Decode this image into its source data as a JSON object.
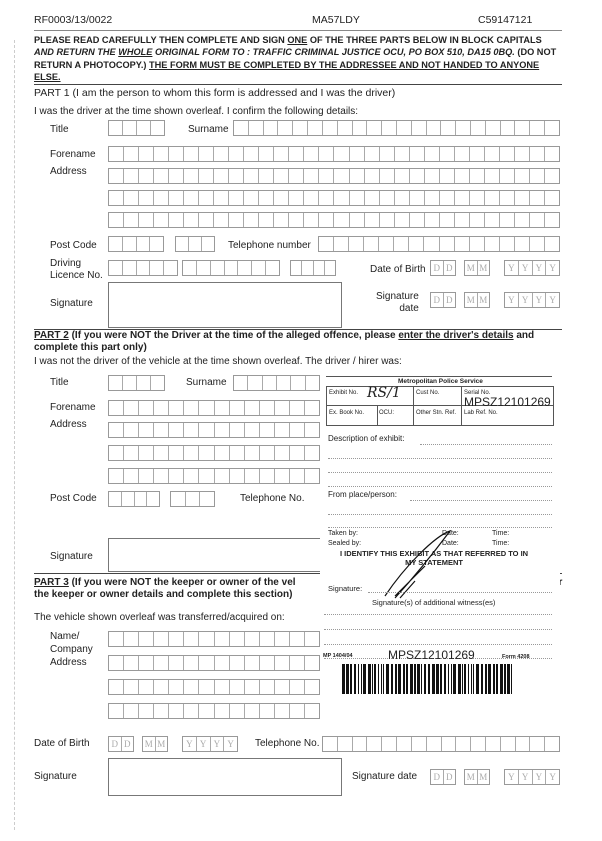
{
  "header": {
    "ref": "RF0003/13/0022",
    "vrm": "MA57LDY",
    "notice_no": "C59147121"
  },
  "instructions": {
    "line1_a": "PLEASE READ CAREFULLY THEN COMPLETE AND SIGN ",
    "line1_one": "ONE",
    "line1_b": " OF THE THREE PARTS BELOW IN BLOCK CAPITALS",
    "line2_a": "AND RETURN THE ",
    "line2_whole": "WHOLE",
    "line2_b": " ORIGINAL FORM TO : TRAFFIC CRIMINAL JUSTICE OCU, PO BOX 510, DA15 0BQ.",
    "line2_c": " (DO NOT",
    "line3_a": "RETURN A PHOTOCOPY.)  ",
    "line3_b": "THE FORM MUST BE COMPLETED BY THE ADDRESSEE AND NOT HANDED TO ANYONE",
    "line4": "ELSE."
  },
  "part1": {
    "heading": "PART 1 (I am the person to whom this form is addressed and I was the driver)",
    "intro": "I was the driver at the time shown overleaf.  I confirm the following details:",
    "title": "Title",
    "surname": "Surname",
    "forename": "Forename",
    "address": "Address",
    "post_code": "Post Code",
    "telephone": "Telephone number",
    "driving": "Driving",
    "licence": "Licence No.",
    "dob": "Date of Birth",
    "signature": "Signature",
    "sig_date1": "Signature",
    "sig_date2": "date"
  },
  "part2": {
    "heading_a": "PART  2",
    "heading_b": " (If you were NOT the Driver at the time of the alleged offence, please ",
    "heading_c": "enter the driver's details",
    "heading_d": " and",
    "heading_e": "complete this part only)",
    "intro": "I was not the driver of the vehicle at the time shown overleaf.  The driver / hirer was:",
    "title": "Title",
    "surname": "Surname",
    "forename": "Forename",
    "address": "Address",
    "post_code": "Post Code",
    "telephone": "Telephone No.",
    "signature": "Signature"
  },
  "part3": {
    "heading_a": "PART  3",
    "heading_b": " (If you were NOT the keeper or owner of the vel",
    "heading_c": "the keeper or owner details and complete this section)",
    "heading_tail": "er",
    "intro": "The vehicle shown overleaf was transferred/acquired on:",
    "name": "Name/",
    "company": "Company",
    "address": "Address",
    "dob": "Date of Birth",
    "telephone": "Telephone No.",
    "signature": "Signature",
    "sig_date": "Signature date"
  },
  "date_letters": [
    "D",
    "D",
    "M",
    "M",
    "Y",
    "Y",
    "Y",
    "Y"
  ],
  "exhibit": {
    "org": "Metropolitan Police Service",
    "exhibit_no": "Exhibit No.",
    "exhibit_handwritten": "RS/1",
    "cust_no": "Cust No.",
    "serial_no": "Serial No.",
    "serial": "MPSZ12101269",
    "ex_book": "Ex. Book No.",
    "ocu": "OCU:",
    "other_stn": "Other Stn. Ref.",
    "lab_ref": "Lab Ref. No.",
    "description": "Description of exhibit:",
    "from": "From place/person:",
    "taken_by": "Taken by:",
    "sealed_by": "Sealed by:",
    "date": "Date:",
    "time": "Time:",
    "identify1": "I IDENTIFY THIS EXHIBIT AS THAT REFERRED TO IN",
    "identify2": "MY STATEMENT",
    "signature": "Signature:",
    "witnesses": "Signature(s) of additional witness(es)",
    "form_code": "MP 1404/04",
    "barcode_text": "MPSZ12101269",
    "form_no": "Form 4208"
  }
}
